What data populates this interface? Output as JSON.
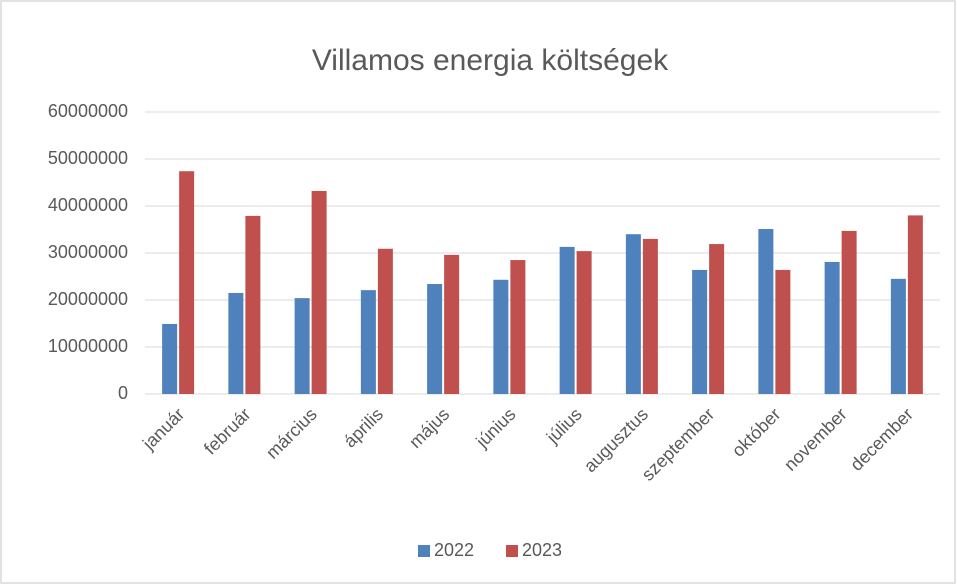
{
  "chart_data": {
    "type": "bar",
    "title": "Villamos energia költségek",
    "categories": [
      "január",
      "február",
      "március",
      "április",
      "május",
      "június",
      "július",
      "augusztus",
      "szeptember",
      "október",
      "november",
      "december"
    ],
    "series": [
      {
        "name": "2022",
        "color": "#4f81bd",
        "values": [
          14900000,
          21500000,
          20400000,
          22100000,
          23400000,
          24300000,
          31300000,
          34000000,
          26400000,
          35100000,
          28100000,
          24500000
        ]
      },
      {
        "name": "2023",
        "color": "#c0504d",
        "values": [
          47400000,
          37900000,
          43200000,
          30900000,
          29600000,
          28500000,
          30400000,
          33000000,
          31900000,
          26400000,
          34700000,
          38000000
        ]
      }
    ],
    "ylim": [
      0,
      60000000
    ],
    "yticks": [
      0,
      10000000,
      20000000,
      30000000,
      40000000,
      50000000,
      60000000
    ],
    "grid": true,
    "legend": "bottom"
  }
}
